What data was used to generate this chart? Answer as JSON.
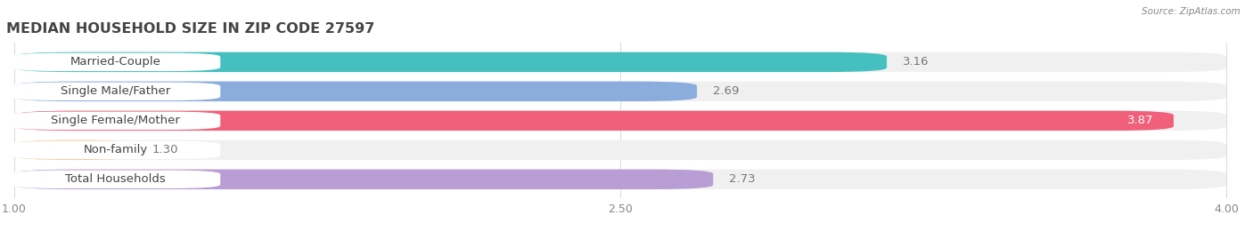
{
  "title": "MEDIAN HOUSEHOLD SIZE IN ZIP CODE 27597",
  "source": "Source: ZipAtlas.com",
  "categories": [
    "Married-Couple",
    "Single Male/Father",
    "Single Female/Mother",
    "Non-family",
    "Total Households"
  ],
  "values": [
    3.16,
    2.69,
    3.87,
    1.3,
    2.73
  ],
  "bar_colors": [
    "#45bfbf",
    "#8aadde",
    "#f0607a",
    "#f5c99a",
    "#b89ed4"
  ],
  "label_bg_colors": [
    "#45bfbf",
    "#8aadde",
    "#f0607a",
    "#f5c99a",
    "#b89ed4"
  ],
  "xlim": [
    1.0,
    4.0
  ],
  "xticks": [
    1.0,
    2.5,
    4.0
  ],
  "background_color": "#ffffff",
  "bar_bg_color": "#f0f0f0",
  "title_fontsize": 11.5,
  "label_fontsize": 9.5,
  "value_fontsize": 9.5,
  "value_inside_color": "#ffffff",
  "value_outside_color": "#777777"
}
